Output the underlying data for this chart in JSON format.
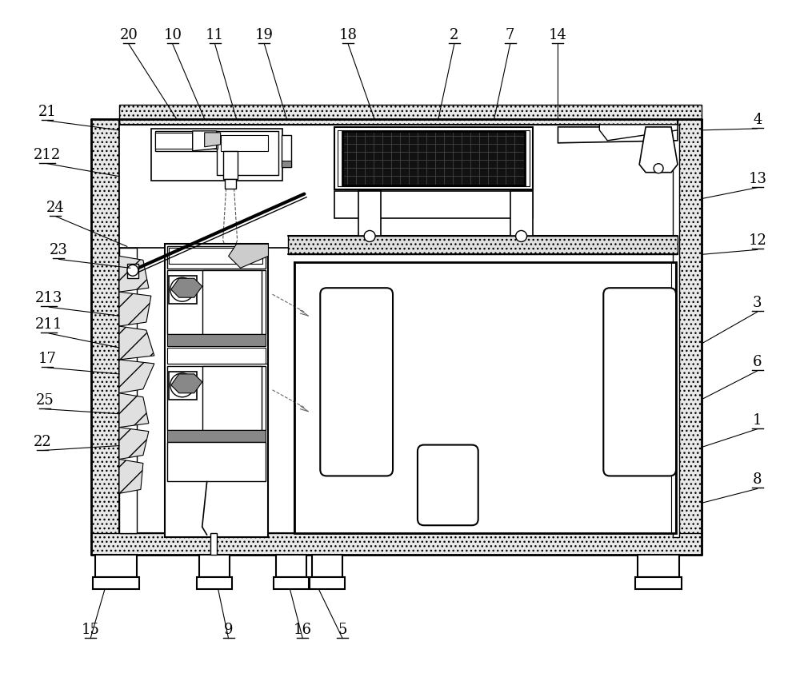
{
  "bg_color": "#ffffff",
  "lc": "#000000",
  "fig_w": 10.0,
  "fig_h": 8.52,
  "annotations": [
    [
      "20",
      160,
      52,
      220,
      148
    ],
    [
      "10",
      215,
      52,
      255,
      148
    ],
    [
      "11",
      268,
      52,
      295,
      148
    ],
    [
      "19",
      330,
      52,
      358,
      148
    ],
    [
      "18",
      435,
      52,
      468,
      148
    ],
    [
      "2",
      568,
      52,
      548,
      148
    ],
    [
      "7",
      638,
      52,
      618,
      148
    ],
    [
      "14",
      698,
      52,
      698,
      148
    ],
    [
      "4",
      948,
      158,
      878,
      162
    ],
    [
      "13",
      948,
      232,
      878,
      248
    ],
    [
      "12",
      948,
      310,
      878,
      318
    ],
    [
      "3",
      948,
      388,
      878,
      430
    ],
    [
      "6",
      948,
      462,
      878,
      500
    ],
    [
      "1",
      948,
      535,
      878,
      560
    ],
    [
      "8",
      948,
      610,
      878,
      630
    ],
    [
      "21",
      58,
      148,
      148,
      162
    ],
    [
      "212",
      58,
      202,
      148,
      220
    ],
    [
      "24",
      68,
      268,
      158,
      308
    ],
    [
      "23",
      72,
      322,
      162,
      335
    ],
    [
      "213",
      60,
      382,
      148,
      395
    ],
    [
      "211",
      60,
      415,
      148,
      435
    ],
    [
      "17",
      58,
      458,
      148,
      468
    ],
    [
      "25",
      55,
      510,
      148,
      518
    ],
    [
      "22",
      52,
      562,
      148,
      558
    ],
    [
      "15",
      112,
      798,
      130,
      738
    ],
    [
      "9",
      285,
      798,
      272,
      738
    ],
    [
      "16",
      378,
      798,
      362,
      738
    ],
    [
      "5",
      428,
      798,
      398,
      738
    ]
  ]
}
